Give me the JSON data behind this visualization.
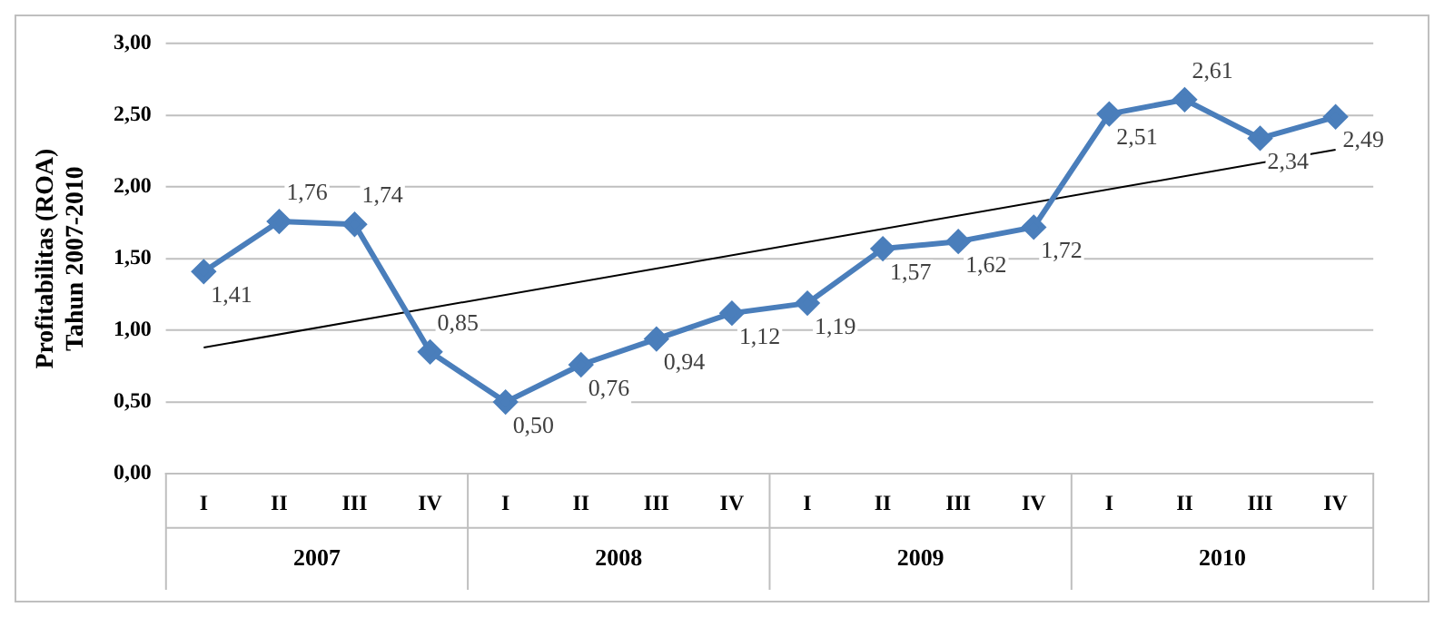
{
  "chart_data": {
    "type": "line",
    "ylabel": "Profitabilitas (ROA)\nTahun 2007-2010",
    "categories": [
      "I",
      "II",
      "III",
      "IV",
      "I",
      "II",
      "III",
      "IV",
      "I",
      "II",
      "III",
      "IV",
      "I",
      "II",
      "III",
      "IV"
    ],
    "series": [
      {
        "color": "#4a7ebb",
        "marker": "diamond",
        "values": [
          1.41,
          1.76,
          1.74,
          0.85,
          0.5,
          0.76,
          0.94,
          1.12,
          1.19,
          1.57,
          1.62,
          1.72,
          2.51,
          2.61,
          2.34,
          2.49
        ],
        "value_labels": [
          "1,41",
          "1,76",
          "1,74",
          "0,85",
          "0,50",
          "0,76",
          "0,94",
          "1,12",
          "1,19",
          "1,57",
          "1,62",
          "1,72",
          "2,51",
          "2,61",
          "2,34",
          "2,49"
        ]
      },
      {
        "type": "line",
        "color": "#000000",
        "marker": "none",
        "values": [
          0.88,
          null,
          null,
          null,
          null,
          null,
          null,
          null,
          null,
          null,
          null,
          null,
          null,
          null,
          null,
          2.26
        ]
      }
    ],
    "annotations": [
      "2007",
      "2008",
      "2009",
      "2010"
    ],
    "ylim": [
      0,
      3
    ],
    "yticks": [
      {
        "value": 0,
        "label": "0,00"
      },
      {
        "value": 0.5,
        "label": "0,50"
      },
      {
        "value": 1,
        "label": "1,00"
      },
      {
        "value": 1.5,
        "label": "1,50"
      },
      {
        "value": 2,
        "label": "2,00"
      },
      {
        "value": 2.5,
        "label": "2,50"
      },
      {
        "value": 3,
        "label": "3,00"
      }
    ],
    "grid": "y",
    "legend": false
  }
}
